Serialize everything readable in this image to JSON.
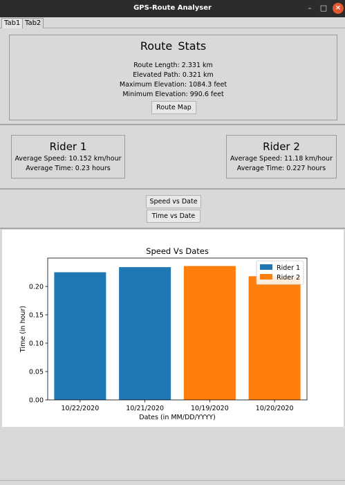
{
  "window": {
    "title": "GPS-Route Analyser",
    "minimize_icon": "minimize-icon",
    "maximize_icon": "maximize-icon",
    "close_icon": "close-icon"
  },
  "tabs": [
    {
      "label": "Tab1",
      "active": true
    },
    {
      "label": "Tab2",
      "active": false
    }
  ],
  "route_stats": {
    "title": "Route  Stats",
    "length": "Route Length: 2.331 km",
    "elevated": "Elevated Path: 0.321 km",
    "max_elev": "Maximum Elevation: 1084.3 feet",
    "min_elev": "Minimum Elevation: 990.6 feet",
    "map_button": "Route Map"
  },
  "rider1": {
    "title": "Rider 1",
    "speed": "Average Speed: 10.152 km/hour",
    "time": "Average Time: 0.23 hours"
  },
  "rider2": {
    "title": "Rider 2",
    "speed": "Average Speed: 11.18 km/hour",
    "time": "Average Time: 0.227 hours"
  },
  "controls": {
    "speed_button": "Speed vs Date",
    "time_button": "Time vs Date"
  },
  "chart_data": {
    "type": "bar",
    "title": "Speed Vs Dates",
    "xlabel": "Dates (in MM/DD/YYYY)",
    "ylabel": "Time (in hour)",
    "categories": [
      "10/22/2020",
      "10/21/2020",
      "10/19/2020",
      "10/20/2020"
    ],
    "series": [
      {
        "name": "Rider 1",
        "color": "#1f77b4",
        "values": [
          0.225,
          0.234,
          null,
          null
        ]
      },
      {
        "name": "Rider 2",
        "color": "#ff7f0e",
        "values": [
          null,
          null,
          0.236,
          0.218
        ]
      }
    ],
    "ylim": [
      0,
      0.25
    ],
    "yticks": [
      "0.00",
      "0.05",
      "0.10",
      "0.15",
      "0.20"
    ],
    "legend": "top-right",
    "grid": false
  }
}
